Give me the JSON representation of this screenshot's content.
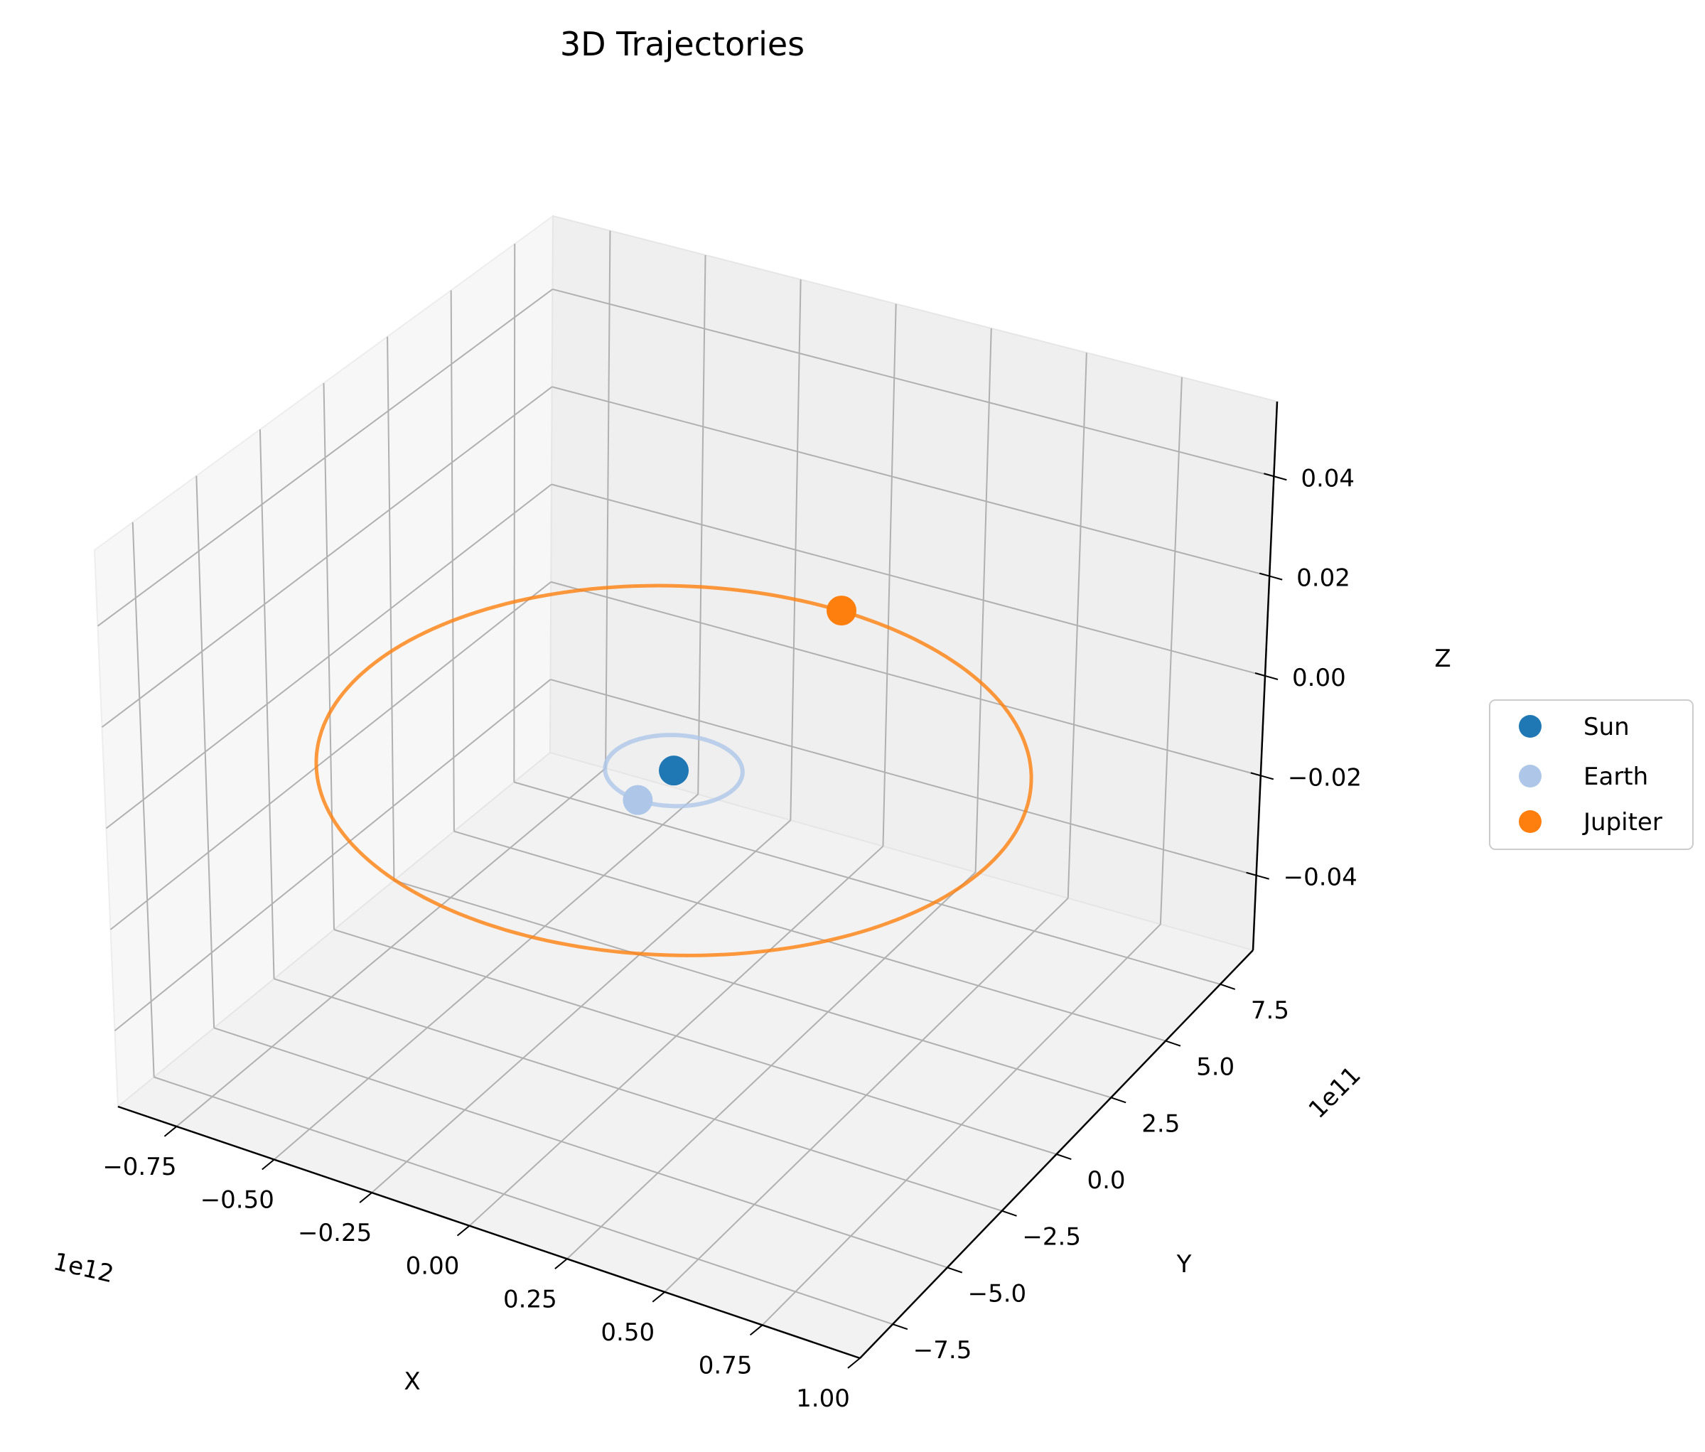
{
  "chart_data": {
    "type": "scatter",
    "title": "3D Trajectories",
    "xlabel": "X",
    "ylabel": "Y",
    "zlabel": "Z",
    "x_offset_text": "1e12",
    "y_offset_text": "1e11",
    "x_ticks": [
      "−0.75",
      "−0.50",
      "−0.25",
      "0.00",
      "0.25",
      "0.50",
      "0.75",
      "1.00"
    ],
    "y_ticks": [
      "−7.5",
      "−5.0",
      "−2.5",
      "0.0",
      "2.5",
      "5.0",
      "7.5"
    ],
    "z_ticks": [
      "−0.04",
      "−0.02",
      "0.00",
      "0.02",
      "0.04"
    ],
    "xlim": [
      -0.9,
      1.0
    ],
    "ylim": [
      -9.0,
      9.0
    ],
    "zlim": [
      -0.055,
      0.055
    ],
    "legend_position": "right",
    "grid": true,
    "series": [
      {
        "name": "Sun",
        "color": "#1f77b4",
        "orbit_radius_m": 0,
        "position": {
          "x": 0.0,
          "y": 0.0,
          "z": 0.0
        }
      },
      {
        "name": "Earth",
        "color": "#aec7e8",
        "orbit_radius_m": 150000000000,
        "position": {
          "x": 0.0,
          "y": -1.5,
          "z": 0.0
        }
      },
      {
        "name": "Jupiter",
        "color": "#ff7f0e",
        "orbit_radius_m": 780000000000,
        "position": {
          "x": -0.05,
          "y": 7.8,
          "z": 0.0
        }
      }
    ]
  }
}
